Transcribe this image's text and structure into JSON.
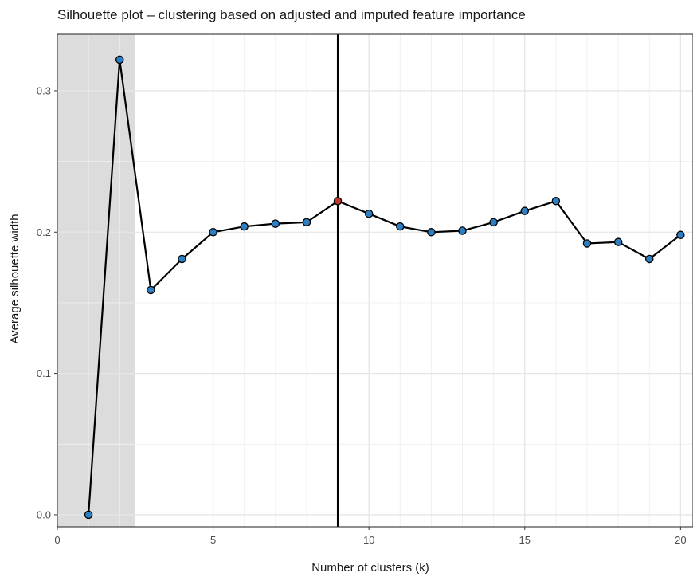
{
  "chart_data": {
    "type": "line",
    "title": "Silhouette plot – clustering based on adjusted and imputed feature importance",
    "xlabel": "Number of clusters (k)",
    "ylabel": "Average silhouette width",
    "xlim": [
      0,
      20.4
    ],
    "ylim": [
      -0.0085,
      0.34
    ],
    "x_ticks": [
      0,
      5,
      10,
      15,
      20
    ],
    "x_tick_labels": [
      "0",
      "5",
      "10",
      "15",
      "20"
    ],
    "y_ticks": [
      0.0,
      0.1,
      0.2,
      0.3
    ],
    "y_tick_labels": [
      "0.0",
      "0.1",
      "0.2",
      "0.3"
    ],
    "grid": true,
    "shaded_region": {
      "x_from": 0,
      "x_to": 2.5,
      "color": "#dcdcdc"
    },
    "vertical_line": {
      "x": 9,
      "color": "#000000"
    },
    "highlight": {
      "x": 9,
      "color": "#c0392b"
    },
    "colors": {
      "line": "#000000",
      "point_fill": "#2e7fc2",
      "point_stroke": "#000000"
    },
    "series": [
      {
        "x": [
          1,
          2,
          3,
          4,
          5,
          6,
          7,
          8,
          9,
          10,
          11,
          12,
          13,
          14,
          15,
          16,
          17,
          18,
          19,
          20
        ],
        "values": [
          0.0,
          0.322,
          0.159,
          0.181,
          0.2,
          0.204,
          0.206,
          0.207,
          0.222,
          0.213,
          0.204,
          0.2,
          0.201,
          0.207,
          0.215,
          0.222,
          0.192,
          0.193,
          0.181,
          0.198
        ]
      }
    ]
  }
}
